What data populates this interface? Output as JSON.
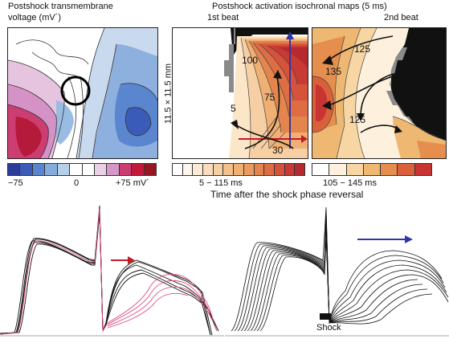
{
  "titles": {
    "voltage_line1": "Postshock transmembrane",
    "voltage_line2": "voltage (mV´)",
    "isochronal": "Postshock activation isochronal maps (5 ms)",
    "first_beat": "1st beat",
    "second_beat": "2nd beat",
    "side_dimension": "11.5 × 11.5 mm"
  },
  "contour_labels": {
    "l100": "100",
    "l75": "75",
    "l5": "5",
    "l30": "30",
    "l125a": "125",
    "l135": "135",
    "l125b": "125"
  },
  "scales": {
    "voltage": {
      "min": "−75",
      "mid": "0",
      "max": "+75 mV´",
      "colors": [
        "#2b3d9a",
        "#3a5bb8",
        "#5a86cf",
        "#86acde",
        "#b6d0ea",
        "#ffffff",
        "#ffffff",
        "#ead0e6",
        "#d596c9",
        "#cc3d72",
        "#c21a3a",
        "#9a1524"
      ]
    },
    "first_beat": {
      "range": "5 − 115 ms",
      "colors": [
        "#ffffff",
        "#fdf6ec",
        "#fcead6",
        "#f9ddbd",
        "#f6cfa4",
        "#f3c08b",
        "#f0b073",
        "#eb9b5e",
        "#e5854e",
        "#de6d43",
        "#d5533a",
        "#c83a34",
        "#b52a2e"
      ]
    },
    "second_beat": {
      "range": "105 − 145 ms",
      "colors": [
        "#ffffff",
        "#fdf0dc",
        "#f7d6a4",
        "#eeb873",
        "#e58e4d",
        "#d9603a",
        "#c73431"
      ]
    }
  },
  "axis_caption": "Time after the shock phase reversal",
  "shock_label": "Shock"
}
